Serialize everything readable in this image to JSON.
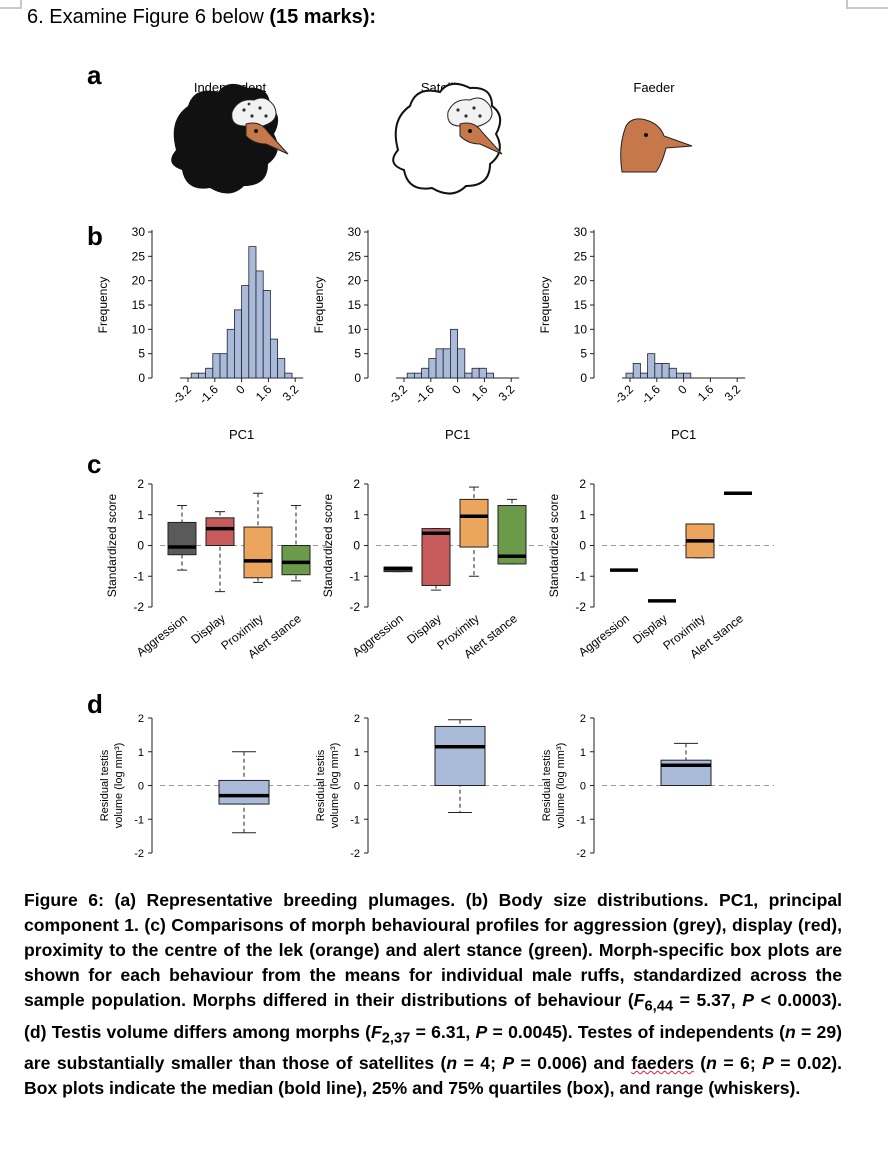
{
  "question": {
    "text": "6. Examine Figure 6 below ",
    "marks": "(15 marks):"
  },
  "panels": {
    "a": "a",
    "b": "b",
    "c": "c",
    "d": "d"
  },
  "morphs": [
    "Independent",
    "Satellite",
    "Faeder"
  ],
  "labels": {
    "frequency": "Frequency",
    "pc1": "PC1",
    "standardized_score": "Standardized score",
    "testis_line1": "Residual testis",
    "testis_line2": "volume (log mm³)"
  },
  "colors": {
    "bar_fill": "#a9bbd8",
    "box_grey": "#5a5a5a",
    "box_red": "#c75b5c",
    "box_orange": "#eba55c",
    "box_green": "#6a9a4a",
    "box_blue": "#a9bbd8"
  },
  "chart_data": [
    {
      "type": "bar",
      "panel": "b",
      "series": [
        {
          "name": "Independent",
          "bin_centers": [
            -3.0,
            -2.6,
            -2.2,
            -1.8,
            -1.4,
            -1.0,
            -0.6,
            -0.2,
            0.2,
            0.6,
            1.0,
            1.4,
            1.8,
            2.2,
            2.6,
            3.0
          ],
          "values": [
            0,
            1,
            1,
            2,
            5,
            5,
            10,
            14,
            19,
            27,
            22,
            18,
            8,
            4,
            1,
            0
          ]
        },
        {
          "name": "Satellite",
          "bin_centers": [
            -3.0,
            -2.6,
            -2.2,
            -1.8,
            -1.4,
            -1.0,
            -0.6,
            -0.2,
            0.2,
            0.6,
            1.0,
            1.4,
            1.8,
            2.2,
            2.6,
            3.0
          ],
          "values": [
            0,
            1,
            1,
            2,
            4,
            6,
            6,
            10,
            6,
            1,
            2,
            2,
            1,
            0,
            0,
            0
          ]
        },
        {
          "name": "Faeder",
          "bin_centers": [
            -3.0,
            -2.6,
            -2.2,
            -1.8,
            -1.4,
            -1.0,
            -0.6,
            -0.2,
            0.2,
            0.6,
            1.0,
            1.4,
            1.8,
            2.2,
            2.6,
            3.0
          ],
          "values": [
            1,
            3,
            1,
            5,
            3,
            3,
            2,
            1,
            1,
            0,
            0,
            0,
            0,
            0,
            0,
            0
          ]
        }
      ],
      "xticks": [
        "-3.2",
        "-1.6",
        "0",
        "1.6",
        "3.2"
      ],
      "xlabel": "PC1",
      "ylabel": "Frequency",
      "yticks": [
        "0",
        "5",
        "10",
        "15",
        "20",
        "25",
        "30"
      ],
      "ylim": [
        0,
        30
      ]
    },
    {
      "type": "box",
      "panel": "c",
      "categories": [
        "Aggression",
        "Display",
        "Proximity",
        "Alert stance"
      ],
      "ylabel": "Standardized score",
      "yticks": [
        "-2",
        "-1",
        "0",
        "1",
        "2"
      ],
      "ylim": [
        -2,
        2
      ],
      "groups": [
        {
          "name": "Independent",
          "boxes": [
            {
              "min": -0.8,
              "q1": -0.3,
              "median": -0.05,
              "q3": 0.75,
              "max": 1.3
            },
            {
              "min": -1.5,
              "q1": 0.0,
              "median": 0.55,
              "q3": 0.9,
              "max": 1.1
            },
            {
              "min": -1.2,
              "q1": -1.05,
              "median": -0.5,
              "q3": 0.6,
              "max": 1.7
            },
            {
              "min": -1.15,
              "q1": -0.95,
              "median": -0.55,
              "q3": 0.0,
              "max": 1.3
            }
          ]
        },
        {
          "name": "Satellite",
          "boxes": [
            {
              "min": -0.85,
              "q1": -0.85,
              "median": -0.75,
              "q3": -0.7,
              "max": -0.7
            },
            {
              "min": -1.45,
              "q1": -1.3,
              "median": 0.4,
              "q3": 0.55,
              "max": 0.55
            },
            {
              "min": -1.0,
              "q1": -0.05,
              "median": 0.95,
              "q3": 1.5,
              "max": 1.9
            },
            {
              "min": -0.6,
              "q1": -0.6,
              "median": -0.35,
              "q3": 1.3,
              "max": 1.5
            }
          ]
        },
        {
          "name": "Faeder",
          "boxes": [
            {
              "min": -0.8,
              "q1": -0.8,
              "median": -0.8,
              "q3": -0.8,
              "max": -0.8
            },
            {
              "min": -1.8,
              "q1": -1.8,
              "median": -1.8,
              "q3": -1.8,
              "max": -1.8
            },
            {
              "min": -0.4,
              "q1": -0.4,
              "median": 0.15,
              "q3": 0.7,
              "max": 0.7
            },
            {
              "min": 1.7,
              "q1": 1.7,
              "median": 1.7,
              "q3": 1.7,
              "max": 1.7
            }
          ]
        }
      ]
    },
    {
      "type": "box",
      "panel": "d",
      "ylabel": "Residual testis volume (log mm³)",
      "yticks": [
        "-2",
        "-1",
        "0",
        "1",
        "2"
      ],
      "ylim": [
        -2,
        2
      ],
      "boxes": [
        {
          "name": "Independent",
          "min": -1.4,
          "q1": -0.55,
          "median": -0.3,
          "q3": 0.15,
          "max": 1.0
        },
        {
          "name": "Satellite",
          "min": -0.8,
          "q1": 0.0,
          "median": 1.15,
          "q3": 1.75,
          "max": 1.95
        },
        {
          "name": "Faeder",
          "min": 0.0,
          "q1": 0.0,
          "median": 0.6,
          "q3": 0.75,
          "max": 1.25
        }
      ]
    }
  ],
  "caption": {
    "p1": "Figure 6: (a) Representative breeding plumages. (b) Body size distributions. PC1, principal component 1. (c) Comparisons of morph behavioural profiles for aggression (grey), display (red), ",
    "p2": "proximity to the centre of the lek",
    "p3": " (orange) and alert stance (green). Morph-specific box plots are shown for each behaviour from the means for individual male ruffs, standardized across the sample population. Morphs differed in their distributions of behaviour (",
    "f1": "F",
    "f1sub": "6,44",
    "p4": " = 5.37, ",
    "pval": "P",
    "p5": " < 0.0003). (d) Testis volume differs among morphs (",
    "f2": "F",
    "f2sub": "2,37",
    "p6": " = 6.31, ",
    "p7": " = 0.0045). Testes of independents (",
    "n": "n",
    "p8": " = 29) are substantially smaller than those of satellites (",
    "p9": " = 4; ",
    "p10": " = 0.006) and ",
    "faeders": "faeders",
    "p11": " (",
    "p12": " = 6; ",
    "p13": " = 0.02). Box plots indicate the median (bold line), 25% and 75% quartiles (box), and range (whiskers)."
  }
}
